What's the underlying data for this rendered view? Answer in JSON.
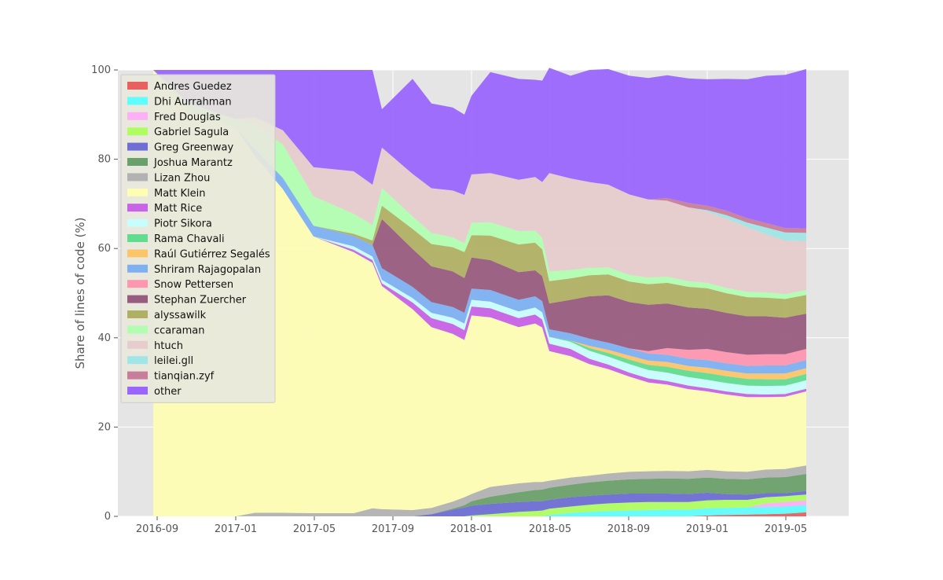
{
  "chart_data": {
    "type": "area",
    "stacked": true,
    "title": "",
    "xlabel": "",
    "ylabel": "Share of lines of code (%)",
    "ylim": [
      0,
      100
    ],
    "xlim": [
      2016.5,
      2019.6
    ],
    "yticks": [
      0,
      20,
      40,
      60,
      80,
      100
    ],
    "xticks": [
      {
        "label": "2016-09",
        "value": 2016.6667
      },
      {
        "label": "2017-01",
        "value": 2017.0
      },
      {
        "label": "2017-05",
        "value": 2017.3333
      },
      {
        "label": "2017-09",
        "value": 2017.6667
      },
      {
        "label": "2018-01",
        "value": 2018.0
      },
      {
        "label": "2018-05",
        "value": 2018.3333
      },
      {
        "label": "2018-09",
        "value": 2018.6667
      },
      {
        "label": "2019-01",
        "value": 2019.0
      },
      {
        "label": "2019-05",
        "value": 2019.3333
      }
    ],
    "grid": true,
    "legend_position": "top-left",
    "x": [
      2016.65,
      2016.8,
      2017.0,
      2017.08,
      2017.2,
      2017.33,
      2017.5,
      2017.58,
      2017.62,
      2017.75,
      2017.83,
      2017.92,
      2017.97,
      2018.0,
      2018.08,
      2018.2,
      2018.27,
      2018.3,
      2018.33,
      2018.42,
      2018.5,
      2018.58,
      2018.67,
      2018.75,
      2018.83,
      2018.92,
      2019.0,
      2019.08,
      2019.17,
      2019.25,
      2019.33,
      2019.42
    ],
    "series": [
      {
        "name": "Andres Guedez",
        "color": "#e8615e",
        "values": [
          0,
          0,
          0,
          0,
          0,
          0,
          0,
          0,
          0,
          0,
          0,
          0,
          0,
          0,
          0,
          0,
          0,
          0,
          0,
          0,
          0,
          0,
          0,
          0,
          0,
          0,
          0.2,
          0.3,
          0.4,
          0.5,
          0.6,
          0.9
        ]
      },
      {
        "name": "Dhi Aurrahman",
        "color": "#5ffdfd",
        "values": [
          0,
          0,
          0,
          0,
          0,
          0,
          0,
          0,
          0,
          0,
          0,
          0,
          0,
          0,
          0,
          0,
          0,
          0,
          0.3,
          0.8,
          1.0,
          1.2,
          1.3,
          1.4,
          1.5,
          1.5,
          1.6,
          1.6,
          1.6,
          1.6,
          1.6,
          1.6
        ]
      },
      {
        "name": "Fred Douglas",
        "color": "#fdb0f6",
        "values": [
          0,
          0,
          0,
          0,
          0,
          0,
          0,
          0,
          0,
          0,
          0,
          0,
          0,
          0,
          0,
          0,
          0,
          0,
          0,
          0,
          0,
          0,
          0,
          0,
          0,
          0,
          0,
          0,
          0,
          0.8,
          1.0,
          1.1
        ]
      },
      {
        "name": "Gabriel Sagula",
        "color": "#b0fd62",
        "values": [
          0,
          0,
          0,
          0,
          0,
          0,
          0,
          0,
          0,
          0,
          0,
          0,
          0,
          0.2,
          0.5,
          1.0,
          1.2,
          1.3,
          1.4,
          1.4,
          1.6,
          1.7,
          1.8,
          1.8,
          1.7,
          1.7,
          1.8,
          1.8,
          1.7,
          1.4,
          1.3,
          1.3
        ]
      },
      {
        "name": "Greg Greenway",
        "color": "#6e6ed4",
        "values": [
          0,
          0,
          0,
          0,
          0,
          0,
          0,
          0,
          0,
          0,
          0.5,
          1.5,
          2.0,
          2.2,
          2.3,
          2.2,
          2.2,
          2.1,
          2.0,
          2.1,
          2.0,
          2.0,
          2.0,
          1.9,
          1.9,
          1.8,
          1.7,
          1.3,
          1.2,
          0.9,
          0.7,
          0.8
        ]
      },
      {
        "name": "Joshua Marantz",
        "color": "#6aa06a",
        "values": [
          0,
          0,
          0,
          0,
          0,
          0,
          0,
          0,
          0,
          0,
          0,
          0.2,
          0.5,
          1.0,
          1.6,
          2.2,
          2.5,
          2.6,
          2.7,
          2.8,
          3.0,
          3.1,
          3.2,
          3.3,
          3.4,
          3.4,
          3.4,
          3.4,
          3.4,
          3.5,
          3.6,
          3.8
        ]
      },
      {
        "name": "Lizan Zhou",
        "color": "#b2b2b2",
        "values": [
          0,
          0,
          0,
          0.8,
          0.8,
          0.7,
          0.7,
          1.8,
          1.6,
          1.4,
          1.4,
          1.6,
          1.8,
          1.6,
          2.2,
          2.0,
          1.8,
          1.7,
          1.6,
          1.6,
          1.5,
          1.6,
          1.7,
          1.7,
          1.7,
          1.7,
          1.7,
          1.7,
          1.7,
          1.8,
          1.8,
          1.9
        ]
      },
      {
        "name": "Matt Klein",
        "color": "#fdfdb4",
        "values": [
          100,
          90.7,
          87.0,
          80.0,
          72.5,
          62.0,
          58.5,
          55.0,
          50.0,
          45.0,
          40.5,
          37.6,
          35.2,
          40.0,
          38.0,
          35.0,
          35.5,
          34.6,
          29.0,
          27.2,
          25.0,
          23.4,
          21.3,
          19.9,
          19.3,
          18.4,
          17.6,
          17.2,
          16.7,
          16.2,
          16.2,
          16.6
        ]
      },
      {
        "name": "Matt Rice",
        "color": "#c862e6",
        "values": [
          0,
          0,
          0,
          0,
          0,
          0,
          0.5,
          0.6,
          0.6,
          1.5,
          2.0,
          2.2,
          2.2,
          2.0,
          2.0,
          2.0,
          2.0,
          1.8,
          1.7,
          1.6,
          1.2,
          1.0,
          0.9,
          0.9,
          0.8,
          0.8,
          0.7,
          0.7,
          0.7,
          0.6,
          0.6,
          0.6
        ]
      },
      {
        "name": "Piotr Sikora",
        "color": "#c8fdfd",
        "values": [
          0,
          0,
          0,
          0,
          0,
          0,
          0.8,
          0.8,
          0.8,
          1.0,
          1.2,
          1.4,
          1.5,
          1.5,
          1.5,
          1.5,
          1.6,
          1.6,
          1.5,
          1.6,
          1.8,
          1.8,
          1.9,
          1.9,
          1.9,
          1.9,
          1.9,
          1.9,
          1.9,
          1.9,
          1.9,
          1.9
        ]
      },
      {
        "name": "Rama Chavali",
        "color": "#62dc90",
        "values": [
          0,
          0,
          0,
          0,
          0,
          0,
          0,
          0,
          0,
          0,
          0,
          0,
          0,
          0,
          0,
          0,
          0,
          0,
          0,
          0.3,
          0.6,
          0.8,
          1.0,
          1.1,
          1.3,
          1.4,
          1.5,
          1.5,
          1.5,
          1.5,
          1.4,
          1.4
        ]
      },
      {
        "name": "Raúl Gutiérrez Segalés",
        "color": "#fdc56a",
        "values": [
          0,
          0,
          0,
          0,
          0,
          0,
          0,
          0,
          0,
          0,
          0,
          0,
          0,
          0,
          0,
          0,
          0,
          0,
          0,
          0,
          0.5,
          0.7,
          0.9,
          1.0,
          1.1,
          1.1,
          1.2,
          1.2,
          1.2,
          1.3,
          1.3,
          1.3
        ]
      },
      {
        "name": "Shriram Rajagopalan",
        "color": "#7eb0f2",
        "values": [
          0,
          0,
          0,
          1.6,
          2.5,
          2.4,
          2.3,
          2.6,
          2.6,
          2.5,
          2.4,
          2.4,
          2.4,
          2.5,
          2.6,
          2.6,
          2.5,
          2.5,
          1.7,
          1.6,
          1.6,
          1.6,
          1.6,
          1.6,
          1.6,
          1.6,
          1.7,
          1.7,
          1.7,
          1.8,
          1.8,
          1.8
        ]
      },
      {
        "name": "Snow Pettersen",
        "color": "#fd96b0",
        "values": [
          0,
          0,
          0,
          0,
          0,
          0,
          0,
          0,
          0,
          0,
          0,
          0,
          0,
          0,
          0,
          0,
          0,
          0,
          0,
          0,
          0,
          0,
          0,
          0.5,
          1.5,
          2.0,
          2.5,
          2.5,
          2.5,
          2.5,
          2.5,
          2.5
        ]
      },
      {
        "name": "Stephan Zuercher",
        "color": "#985c7e",
        "values": [
          0,
          0,
          0,
          0,
          0,
          0,
          0,
          0,
          11.0,
          8.5,
          8.0,
          8.0,
          7.8,
          7.0,
          6.7,
          6.2,
          5.8,
          5.6,
          5.8,
          7.5,
          9.5,
          10.6,
          10.4,
          10.4,
          10.0,
          9.5,
          9.0,
          8.8,
          8.6,
          8.5,
          8.2,
          7.9
        ]
      },
      {
        "name": "alyssawilk",
        "color": "#b0b064",
        "values": [
          0,
          0,
          0,
          0,
          0,
          0,
          0.5,
          1.0,
          3.0,
          4.5,
          5.0,
          5.4,
          5.8,
          5.0,
          5.5,
          6.2,
          6.2,
          6.0,
          5.0,
          4.8,
          4.7,
          4.7,
          4.6,
          4.6,
          4.6,
          4.6,
          4.6,
          4.4,
          4.3,
          4.2,
          4.2,
          4.2
        ]
      },
      {
        "name": "ccaraman",
        "color": "#b2fdb2",
        "values": [
          0,
          1.8,
          2.0,
          5.5,
          7.5,
          6.6,
          4.5,
          3.5,
          4.0,
          2.8,
          2.5,
          2.2,
          2.0,
          2.8,
          3.0,
          3.0,
          2.7,
          2.6,
          2.2,
          1.9,
          1.7,
          1.6,
          1.5,
          1.5,
          1.4,
          1.3,
          1.2,
          1.2,
          1.2,
          1.2,
          1.1,
          1.1
        ]
      },
      {
        "name": "htuch",
        "color": "#e6cccc",
        "values": [
          0,
          0,
          0,
          1.5,
          3.2,
          6.5,
          9.5,
          9.0,
          9.0,
          9.5,
          10.0,
          10.5,
          10.8,
          10.8,
          11.0,
          11.5,
          12.0,
          12.5,
          22.0,
          20.5,
          19.2,
          18.5,
          18.0,
          17.5,
          17.0,
          16.5,
          16.0,
          15.5,
          14.5,
          13.0,
          12.0,
          11.0
        ]
      },
      {
        "name": "leilei.gll",
        "color": "#a0e6e6",
        "values": [
          0,
          0,
          0,
          0,
          0,
          0,
          0,
          0,
          0,
          0,
          0,
          0,
          0,
          0,
          0,
          0,
          0,
          0,
          0,
          0,
          0,
          0,
          0,
          0,
          0,
          0,
          0.3,
          0.8,
          1.0,
          1.5,
          1.8,
          1.8
        ]
      },
      {
        "name": "tianqian.zyf",
        "color": "#c87e9a",
        "values": [
          0,
          0,
          0,
          0,
          0,
          0,
          0,
          0,
          0,
          0,
          0,
          0,
          0,
          0,
          0,
          0,
          0,
          0,
          0,
          0,
          0,
          0,
          0,
          0,
          0.6,
          1.0,
          1.0,
          1.0,
          1.0,
          1.0,
          1.0,
          1.0
        ]
      },
      {
        "name": "other",
        "color": "#9a66fd",
        "values": [
          0,
          7.5,
          11.0,
          10.6,
          13.5,
          21.8,
          22.7,
          25.7,
          8.6,
          21.3,
          19.0,
          18.6,
          18.0,
          17.6,
          22.6,
          22.6,
          21.8,
          22.7,
          23.6,
          23.0,
          25.1,
          25.9,
          26.6,
          27.2,
          27.5,
          27.9,
          28.3,
          29.5,
          31.1,
          33.0,
          34.3,
          35.7
        ]
      }
    ]
  }
}
